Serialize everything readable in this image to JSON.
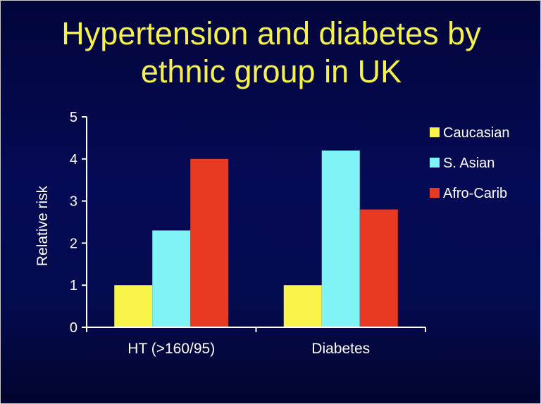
{
  "slide": {
    "title_line1": "Hypertension and diabetes by",
    "title_line2": "ethnic group in UK"
  },
  "chart_data": {
    "type": "bar",
    "categories": [
      "HT (>160/95)",
      "Diabetes"
    ],
    "series": [
      {
        "name": "Caucasian",
        "values": [
          1.0,
          1.0
        ],
        "color": "#f8f44a"
      },
      {
        "name": "S. Asian",
        "values": [
          2.3,
          4.2
        ],
        "color": "#80f3f6"
      },
      {
        "name": "Afro-Carib",
        "values": [
          4.0,
          2.8
        ],
        "color": "#e83a22"
      }
    ],
    "xlabel": "",
    "ylabel": "Relative risk",
    "ylim": [
      0,
      5
    ],
    "yticks": [
      0,
      1,
      2,
      3,
      4,
      5
    ],
    "grid": false,
    "legend_position": "right",
    "background_color": "#040a4e",
    "title_color": "#f6f14a"
  }
}
